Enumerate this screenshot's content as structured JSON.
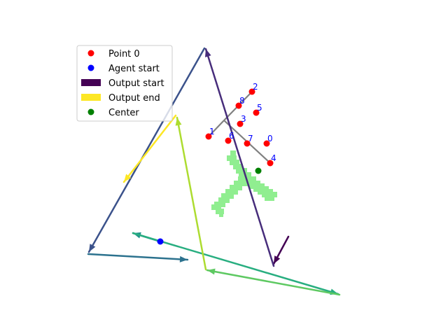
{
  "chart_data": {
    "type": "scatter",
    "xlim": [
      0,
      640
    ],
    "ylim": [
      480,
      0
    ],
    "grid": false,
    "axes_visible": false,
    "legend": {
      "placement": "upper-left",
      "entries": [
        {
          "label": "Point 0",
          "marker": "dot",
          "color": "#ff0000"
        },
        {
          "label": "Agent start",
          "marker": "dot",
          "color": "#0000ff"
        },
        {
          "label": "Output start",
          "marker": "bar",
          "color": "#440154"
        },
        {
          "label": "Output end",
          "marker": "bar",
          "color": "#fde725"
        },
        {
          "label": "Center",
          "marker": "dot",
          "color": "#008000"
        }
      ]
    },
    "points": [
      {
        "label": "0",
        "x": 381,
        "y": 205
      },
      {
        "label": "1",
        "x": 298,
        "y": 195
      },
      {
        "label": "2",
        "x": 360,
        "y": 131
      },
      {
        "label": "3",
        "x": 343,
        "y": 177
      },
      {
        "label": "4",
        "x": 386,
        "y": 233
      },
      {
        "label": "5",
        "x": 366,
        "y": 161
      },
      {
        "label": "6",
        "x": 326,
        "y": 201
      },
      {
        "label": "7",
        "x": 353,
        "y": 205
      },
      {
        "label": "8",
        "x": 341,
        "y": 151
      }
    ],
    "skeleton": [
      [
        [
          360,
          131
        ],
        [
          320,
          172
        ]
      ],
      [
        [
          298,
          195
        ],
        [
          320,
          172
        ]
      ],
      [
        [
          320,
          172
        ],
        [
          386,
          233
        ]
      ]
    ],
    "agent_start": {
      "x": 229,
      "y": 345
    },
    "center": {
      "x": 369,
      "y": 244
    },
    "arrows": [
      {
        "from": [
          412,
          338
        ],
        "to": [
          391,
          377
        ],
        "color": "#440154"
      },
      {
        "from": [
          391,
          380
        ],
        "to": [
          294,
          70
        ],
        "color": "#472d7b"
      },
      {
        "from": [
          292,
          69
        ],
        "to": [
          127,
          360
        ],
        "color": "#3b528b"
      },
      {
        "from": [
          126,
          363
        ],
        "to": [
          268,
          371
        ],
        "color": "#2c728e"
      },
      {
        "from": [
          229,
          345
        ],
        "to": [
          190,
          333
        ],
        "color": "#21918c"
      },
      {
        "from": [
          190,
          333
        ],
        "to": [
          483,
          420
        ],
        "color": "#28ae80"
      },
      {
        "from": [
          485,
          421
        ],
        "to": [
          296,
          386
        ],
        "color": "#5ec962"
      },
      {
        "from": [
          294,
          385
        ],
        "to": [
          253,
          168
        ],
        "color": "#addc30"
      },
      {
        "from": [
          251,
          165
        ],
        "to": [
          177,
          260
        ],
        "color": "#fde725"
      }
    ],
    "shape_color": "#90ee90"
  }
}
